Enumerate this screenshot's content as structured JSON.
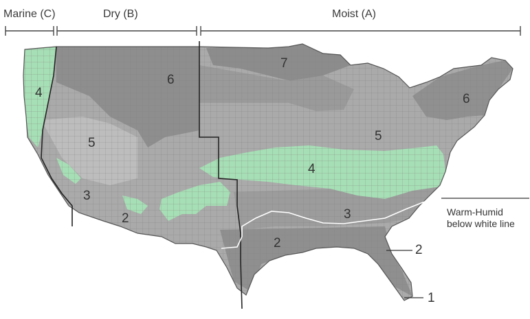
{
  "regions": {
    "marine": "Marine (C)",
    "dry": "Dry (B)",
    "moist": "Moist (A)"
  },
  "zones": {
    "z7": "7",
    "z6_west": "6",
    "z6_east": "6",
    "z5_west": "5",
    "z5_east": "5",
    "z4_west": "4",
    "z4_east": "4",
    "z3_west": "3",
    "z3_east": "3",
    "z2_west": "2",
    "z2_texas": "2",
    "z2_florida": "2",
    "z1": "1"
  },
  "note": {
    "line1": "Warm-Humid",
    "line2": "below white line"
  },
  "colors": {
    "marine_zone4_green": "#a6dfb5",
    "dark_gray": "#8e8e8e",
    "mid_gray": "#aaaaaa",
    "light_gray": "#c9c9c9",
    "county_lines": "#7a7a7a",
    "white_line": "#ffffff"
  }
}
